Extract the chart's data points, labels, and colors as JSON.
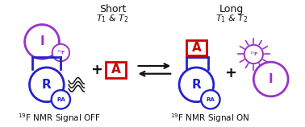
{
  "blue": "#2222cc",
  "purple": "#9933cc",
  "red": "#cc0000",
  "black": "#111111",
  "bg": "#ffffff",
  "title_left": "Short",
  "subtitle_left": "$T_1$ & $T_2$",
  "title_right": "Long",
  "subtitle_right": "$T_1$ & $T_2$",
  "label_left": "$^{19}$F NMR Signal OFF",
  "label_right": "$^{19}$F NMR Signal ON"
}
